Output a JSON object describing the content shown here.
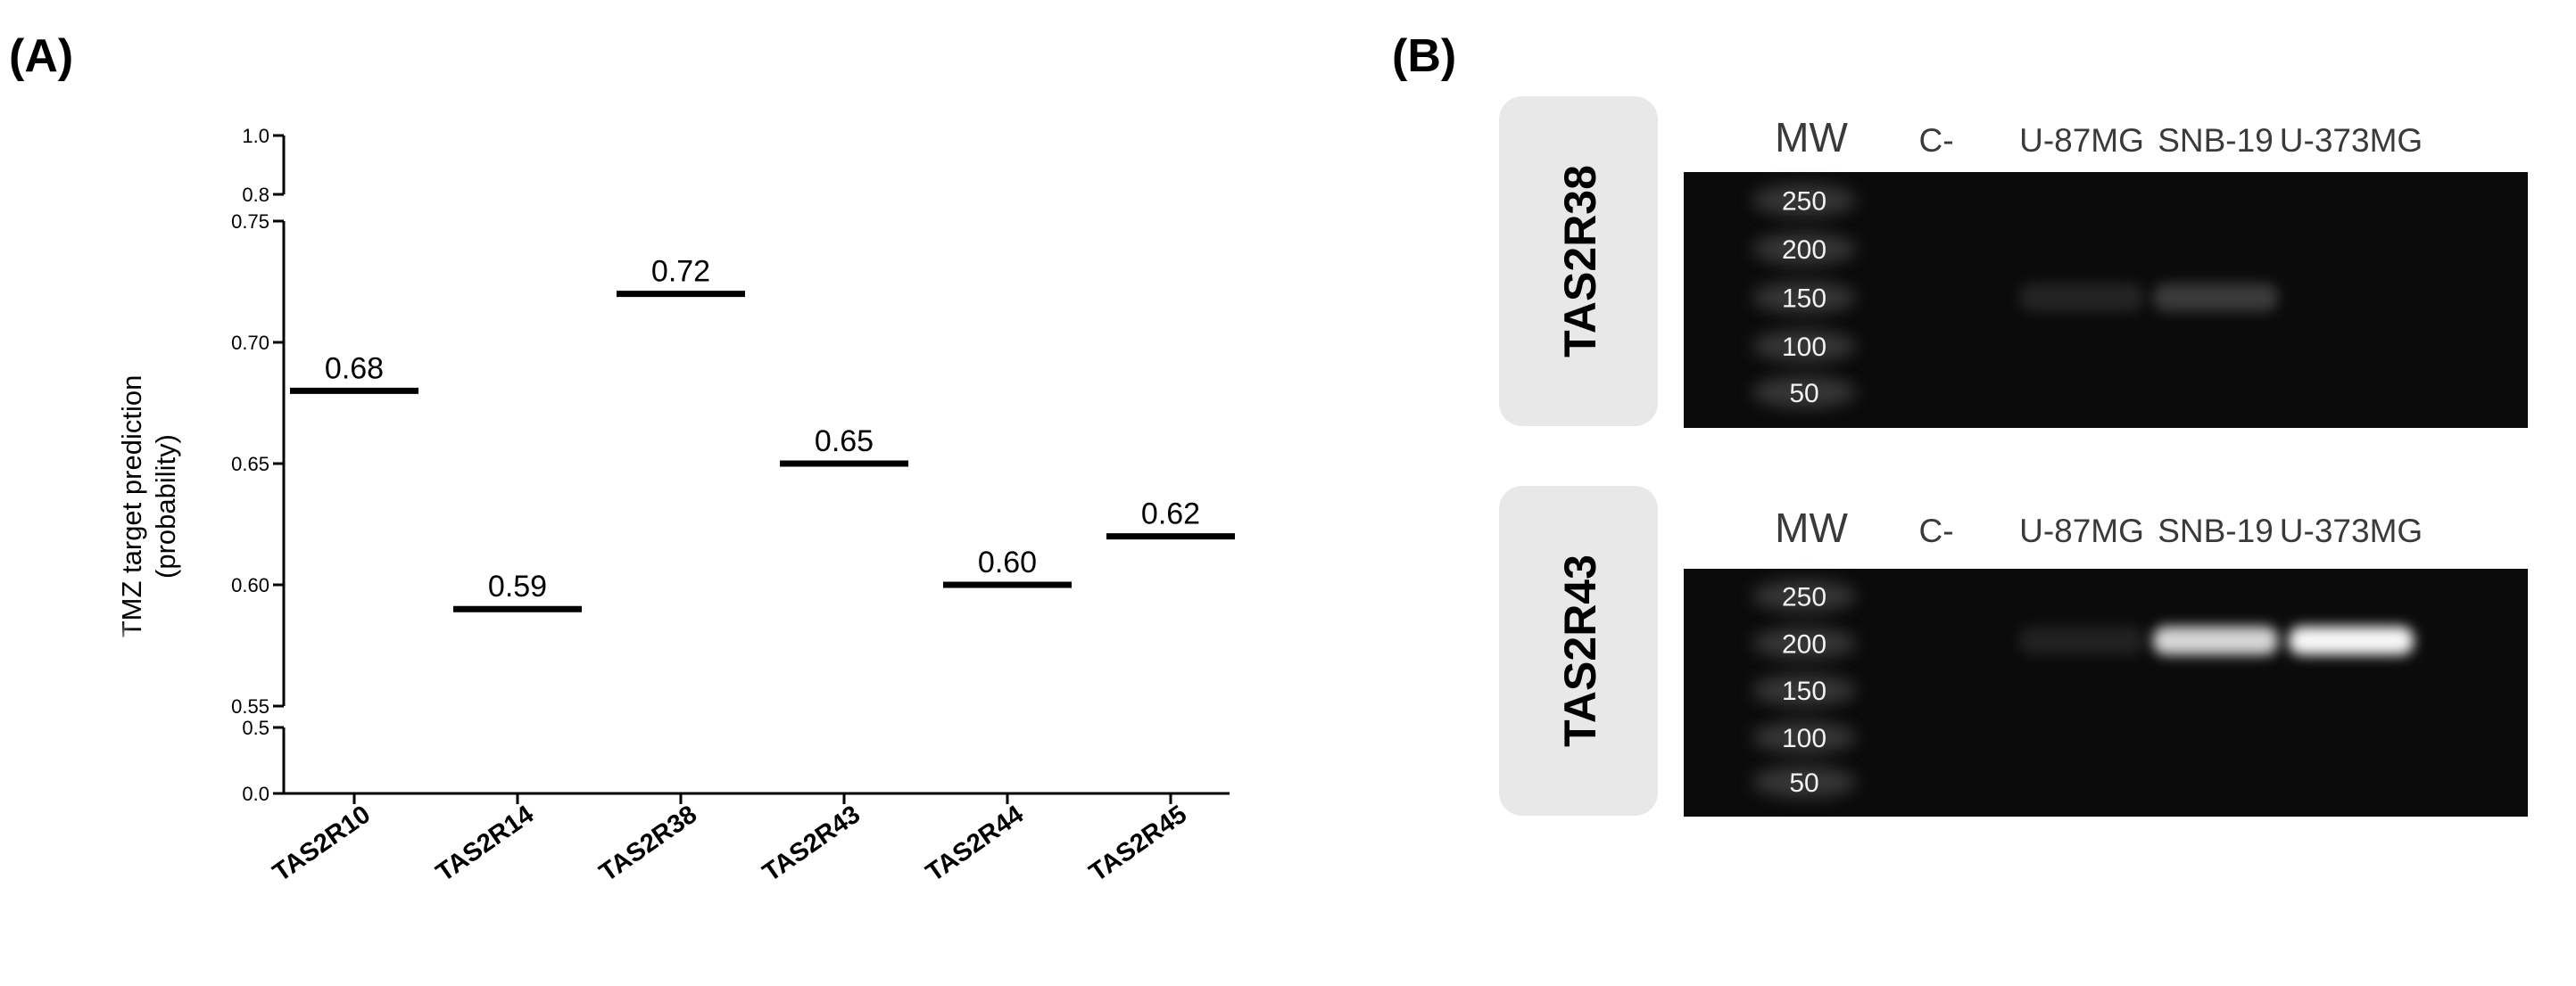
{
  "panels": {
    "a_label": "(A)",
    "b_label": "(B)"
  },
  "chart_data": {
    "type": "scatter",
    "ylabel_line1": "TMZ target prediction",
    "ylabel_line2": "(probability)",
    "y_axis_segments": [
      {
        "range": [
          0.0,
          0.5
        ],
        "ticks": [
          "0.0",
          "0.5"
        ]
      },
      {
        "range": [
          0.55,
          0.75
        ],
        "ticks": [
          "0.55",
          "0.60",
          "0.65",
          "0.70",
          "0.75"
        ]
      },
      {
        "range": [
          0.8,
          1.0
        ],
        "ticks": [
          "0.8",
          "1.0"
        ]
      }
    ],
    "categories": [
      "TAS2R10",
      "TAS2R14",
      "TAS2R38",
      "TAS2R43",
      "TAS2R44",
      "TAS2R45"
    ],
    "values": [
      0.68,
      0.59,
      0.72,
      0.65,
      0.6,
      0.62
    ],
    "data_labels": [
      "0.68",
      "0.59",
      "0.72",
      "0.65",
      "0.60",
      "0.62"
    ],
    "grid": false,
    "legend": "none",
    "color": "#000000"
  },
  "gels": {
    "lanes": [
      "MW",
      "C-",
      "U-87MG",
      "SNB-19",
      "U-373MG"
    ],
    "ladder_labels": [
      "250",
      "200",
      "150",
      "100",
      "50"
    ],
    "blots": [
      {
        "gene": "TAS2R38",
        "ladder": [
          "250",
          "200",
          "150",
          "100",
          "50"
        ],
        "band_intensity": [
          0,
          0.04,
          0.18,
          0,
          0
        ]
      },
      {
        "gene": "TAS2R43",
        "ladder": [
          "250",
          "200",
          "150",
          "100",
          "50"
        ],
        "band_intensity": [
          0,
          0.02,
          0.75,
          0.95,
          1.0
        ]
      }
    ]
  }
}
